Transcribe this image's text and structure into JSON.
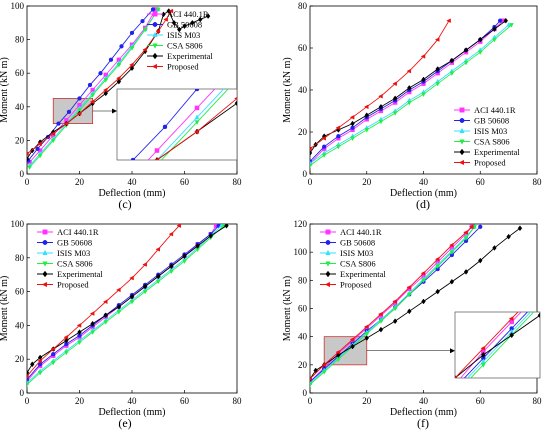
{
  "series_names": [
    "ACI 440.1R",
    "GB 50608",
    "ISIS M03",
    "CSA S806",
    "Experimental",
    "Proposed"
  ],
  "colors": [
    "#ff33ff",
    "#2222ee",
    "#33e0ff",
    "#22ee44",
    "#000000",
    "#ee1111"
  ],
  "markers": [
    "square",
    "circle",
    "triangle-up",
    "triangle-down",
    "diamond",
    "triangle-left"
  ],
  "chart_data": [
    {
      "type": "line",
      "label": "(c)",
      "xlabel": "Deflection (mm)",
      "ylabel": "Moment (kN m)",
      "xlim": [
        0,
        80
      ],
      "xticks": [
        0,
        20,
        40,
        60,
        80
      ],
      "ylim": [
        0,
        100
      ],
      "yticks": [
        0,
        20,
        40,
        60,
        80,
        100
      ],
      "legend_position": "top-right",
      "inset": {
        "region_x": [
          10,
          25
        ],
        "region_y": [
          30,
          45
        ]
      },
      "series": [
        {
          "name": "ACI 440.1R",
          "x": [
            1,
            5,
            10,
            15,
            20,
            25,
            30,
            35,
            40,
            45,
            49
          ],
          "y": [
            7,
            14,
            23,
            32,
            41,
            50,
            59,
            68,
            77,
            87,
            98
          ]
        },
        {
          "name": "GB 50608",
          "x": [
            0.5,
            4,
            8,
            12,
            16,
            20,
            24,
            28,
            32,
            36,
            40,
            44,
            48
          ],
          "y": [
            8,
            15,
            22,
            30,
            37,
            45,
            53,
            60,
            68,
            76,
            84,
            91,
            98
          ]
        },
        {
          "name": "ISIS M03",
          "x": [
            1,
            5,
            10,
            15,
            20,
            25,
            30,
            35,
            40,
            45,
            50
          ],
          "y": [
            5,
            12,
            21,
            30,
            39,
            48,
            57,
            66,
            76,
            86,
            98
          ]
        },
        {
          "name": "CSA S806",
          "x": [
            1,
            5,
            10,
            15,
            20,
            25,
            30,
            35,
            40,
            45,
            50
          ],
          "y": [
            4,
            11,
            20,
            29,
            38,
            47,
            56,
            65,
            75,
            86,
            98
          ]
        },
        {
          "name": "Experimental",
          "x": [
            0,
            2,
            5,
            10,
            15,
            20,
            25,
            30,
            35,
            40,
            45,
            50,
            52,
            54,
            56,
            58,
            60,
            63,
            66,
            69
          ],
          "y": [
            9,
            14,
            19,
            25,
            30,
            36,
            42,
            48,
            55,
            63,
            73,
            85,
            95,
            97,
            90,
            86,
            88,
            90,
            92,
            94
          ]
        },
        {
          "name": "Proposed",
          "x": [
            0,
            5,
            10,
            15,
            20,
            25,
            30,
            35,
            40,
            45,
            50,
            53,
            55
          ],
          "y": [
            12,
            18,
            24,
            30,
            36,
            43,
            50,
            57,
            65,
            74,
            85,
            92,
            97
          ]
        }
      ]
    },
    {
      "type": "line",
      "label": "(d)",
      "xlabel": "Deflection (mm)",
      "ylabel": "Moment (kN m)",
      "xlim": [
        0,
        80
      ],
      "xticks": [
        0,
        20,
        40,
        60,
        80
      ],
      "ylim": [
        0,
        80
      ],
      "yticks": [
        0,
        20,
        40,
        60,
        80
      ],
      "legend_position": "bottom-right",
      "series": [
        {
          "name": "ACI 440.1R",
          "x": [
            0,
            5,
            10,
            15,
            20,
            25,
            30,
            35,
            40,
            45,
            50,
            55,
            60,
            65,
            68
          ],
          "y": [
            5,
            12,
            17,
            21,
            26,
            30,
            34,
            39,
            43,
            48,
            53,
            58,
            63,
            69,
            73
          ]
        },
        {
          "name": "GB 50608",
          "x": [
            0,
            5,
            10,
            15,
            20,
            25,
            30,
            35,
            40,
            45,
            50,
            55,
            60,
            65,
            67
          ],
          "y": [
            6,
            13,
            18,
            22,
            27,
            31,
            35,
            40,
            44,
            49,
            54,
            59,
            64,
            70,
            73
          ]
        },
        {
          "name": "ISIS M03",
          "x": [
            0,
            5,
            10,
            15,
            20,
            25,
            30,
            35,
            40,
            45,
            50,
            55,
            60,
            65,
            70
          ],
          "y": [
            5,
            10,
            14,
            18,
            22,
            26,
            30,
            35,
            39,
            44,
            49,
            54,
            59,
            65,
            71
          ]
        },
        {
          "name": "CSA S806",
          "x": [
            0,
            5,
            10,
            15,
            20,
            25,
            30,
            35,
            40,
            45,
            50,
            55,
            60,
            65,
            71
          ],
          "y": [
            4,
            9,
            13,
            17,
            21,
            25,
            29,
            34,
            38,
            43,
            48,
            53,
            58,
            64,
            71
          ]
        },
        {
          "name": "Experimental",
          "x": [
            0,
            2,
            5,
            10,
            15,
            20,
            25,
            30,
            35,
            40,
            45,
            50,
            55,
            60,
            65,
            69
          ],
          "y": [
            10,
            14,
            18,
            21,
            24,
            28,
            32,
            36,
            41,
            45,
            50,
            54,
            59,
            64,
            69,
            73
          ]
        },
        {
          "name": "Proposed",
          "x": [
            0,
            5,
            10,
            15,
            20,
            25,
            30,
            35,
            40,
            45,
            49
          ],
          "y": [
            12,
            17,
            22,
            27,
            32,
            37,
            43,
            49,
            56,
            64,
            73
          ]
        }
      ]
    },
    {
      "type": "line",
      "label": "(e)",
      "xlabel": "Deflection (mm)",
      "ylabel": "Moment (kN m)",
      "xlim": [
        0,
        80
      ],
      "xticks": [
        0,
        20,
        40,
        60,
        80
      ],
      "ylim": [
        0,
        100
      ],
      "yticks": [
        0,
        20,
        40,
        60,
        80,
        100
      ],
      "legend_position": "top-left",
      "series": [
        {
          "name": "ACI 440.1R",
          "x": [
            0,
            5,
            10,
            15,
            20,
            25,
            30,
            35,
            40,
            45,
            50,
            55,
            60,
            65,
            70,
            72
          ],
          "y": [
            7,
            16,
            22,
            28,
            33,
            39,
            45,
            51,
            57,
            63,
            69,
            75,
            81,
            88,
            94,
            99
          ]
        },
        {
          "name": "GB 50608",
          "x": [
            0,
            5,
            10,
            15,
            20,
            25,
            30,
            35,
            40,
            45,
            50,
            55,
            60,
            65,
            70,
            73
          ],
          "y": [
            8,
            17,
            23,
            29,
            34,
            40,
            46,
            52,
            58,
            64,
            70,
            76,
            82,
            88,
            94,
            99
          ]
        },
        {
          "name": "ISIS M03",
          "x": [
            0,
            5,
            10,
            15,
            20,
            25,
            30,
            35,
            40,
            45,
            50,
            55,
            60,
            65,
            70,
            74
          ],
          "y": [
            6,
            13,
            19,
            25,
            31,
            37,
            43,
            49,
            55,
            61,
            67,
            73,
            79,
            86,
            93,
            99
          ]
        },
        {
          "name": "CSA S806",
          "x": [
            0,
            5,
            10,
            15,
            20,
            25,
            30,
            35,
            40,
            45,
            50,
            55,
            60,
            65,
            70,
            75
          ],
          "y": [
            5,
            12,
            18,
            24,
            30,
            36,
            42,
            48,
            54,
            60,
            66,
            72,
            78,
            85,
            92,
            99
          ]
        },
        {
          "name": "Experimental",
          "x": [
            0,
            2,
            5,
            10,
            15,
            20,
            25,
            30,
            35,
            40,
            45,
            50,
            55,
            60,
            65,
            70,
            76
          ],
          "y": [
            12,
            17,
            21,
            26,
            31,
            36,
            41,
            46,
            51,
            57,
            63,
            69,
            75,
            81,
            87,
            93,
            99
          ]
        },
        {
          "name": "Proposed",
          "x": [
            0,
            5,
            10,
            15,
            20,
            25,
            30,
            35,
            40,
            45,
            50,
            55,
            58
          ],
          "y": [
            10,
            19,
            26,
            33,
            40,
            47,
            54,
            61,
            68,
            76,
            85,
            94,
            99
          ]
        }
      ]
    },
    {
      "type": "line",
      "label": "(f)",
      "xlabel": "Deflection (mm)",
      "ylabel": "Moment (kN m)",
      "xlim": [
        0,
        80
      ],
      "xticks": [
        0,
        20,
        40,
        60,
        80
      ],
      "ylim": [
        0,
        120
      ],
      "yticks": [
        0,
        20,
        40,
        60,
        80,
        100,
        120
      ],
      "legend_position": "top-left",
      "inset": {
        "region_x": [
          5,
          20
        ],
        "region_y": [
          20,
          40
        ]
      },
      "series": [
        {
          "name": "ACI 440.1R",
          "x": [
            0,
            5,
            10,
            15,
            20,
            25,
            30,
            35,
            40,
            45,
            50,
            55,
            57
          ],
          "y": [
            8,
            18,
            28,
            37,
            46,
            55,
            64,
            74,
            83,
            93,
            103,
            113,
            118
          ]
        },
        {
          "name": "GB 50608",
          "x": [
            0,
            5,
            10,
            15,
            20,
            25,
            30,
            35,
            40,
            45,
            50,
            55,
            60
          ],
          "y": [
            8,
            17,
            26,
            35,
            44,
            52,
            61,
            70,
            79,
            88,
            98,
            108,
            118
          ]
        },
        {
          "name": "ISIS M03",
          "x": [
            0,
            5,
            10,
            15,
            20,
            25,
            30,
            35,
            40,
            45,
            50,
            55,
            58
          ],
          "y": [
            7,
            16,
            25,
            34,
            43,
            52,
            61,
            71,
            81,
            91,
            101,
            111,
            118
          ]
        },
        {
          "name": "CSA S806",
          "x": [
            0,
            5,
            10,
            15,
            20,
            25,
            30,
            35,
            40,
            45,
            50,
            55,
            58
          ],
          "y": [
            6,
            15,
            24,
            33,
            42,
            51,
            60,
            70,
            80,
            90,
            100,
            110,
            118
          ]
        },
        {
          "name": "Experimental",
          "x": [
            0,
            2,
            5,
            10,
            15,
            20,
            25,
            30,
            35,
            40,
            45,
            50,
            55,
            60,
            65,
            70,
            74
          ],
          "y": [
            10,
            16,
            20,
            27,
            33,
            39,
            45,
            51,
            58,
            65,
            72,
            79,
            86,
            94,
            103,
            111,
            117
          ]
        },
        {
          "name": "Proposed",
          "x": [
            0,
            5,
            10,
            15,
            20,
            25,
            30,
            35,
            40,
            45,
            50,
            55,
            57
          ],
          "y": [
            10,
            20,
            29,
            38,
            47,
            56,
            65,
            75,
            85,
            95,
            105,
            114,
            118
          ]
        }
      ]
    }
  ]
}
